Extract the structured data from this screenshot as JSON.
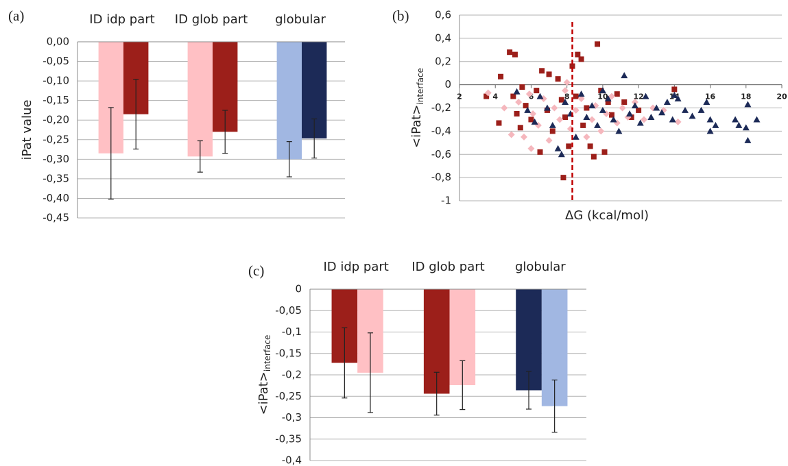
{
  "chart_data": [
    {
      "type": "bar",
      "panel": "(a)",
      "ylabel": "iPat value",
      "categories": [
        "ID idp part",
        "ID glob part",
        "globular"
      ],
      "series": [
        {
          "colors": [
            "#ffc0c4",
            "#ffc0c4",
            "#a1b7e2"
          ],
          "values": [
            -0.285,
            -0.293,
            -0.3
          ],
          "errors": [
            0.117,
            0.04,
            0.045
          ]
        },
        {
          "colors": [
            "#9c1f1a",
            "#9c1f1a",
            "#1c2a57"
          ],
          "values": [
            -0.185,
            -0.23,
            -0.247
          ],
          "errors": [
            0.089,
            0.055,
            0.05
          ]
        }
      ],
      "ylim": [
        -0.45,
        0
      ],
      "yticks": [
        {
          "value": 0,
          "label": "0,00"
        },
        {
          "value": -0.05,
          "label": "-0,05"
        },
        {
          "value": -0.1,
          "label": "-0,10"
        },
        {
          "value": -0.15,
          "label": "-0,15"
        },
        {
          "value": -0.2,
          "label": "-0,20"
        },
        {
          "value": -0.25,
          "label": "-0,25"
        },
        {
          "value": -0.3,
          "label": "-0,30"
        },
        {
          "value": -0.35,
          "label": "-0,35"
        },
        {
          "value": -0.4,
          "label": "-0,40"
        },
        {
          "value": -0.45,
          "label": "-0,45"
        }
      ],
      "grid": true
    },
    {
      "type": "scatter",
      "panel": "(b)",
      "ylabel": "<iPat>",
      "ylabel_sub": "interface",
      "xlabel": "ΔG (kcal/mol)",
      "series": [
        {
          "color": "#9c1f1a",
          "marker": "square",
          "x": [
            4.2,
            4.8,
            5.1,
            4.3,
            5.0,
            5.2,
            5.4,
            5.7,
            6.0,
            6.3,
            6.6,
            6.9,
            7.2,
            7.5,
            7.7,
            7.9,
            8.1,
            8.3,
            8.5,
            8.6,
            8.8,
            8.9,
            9.1,
            9.3,
            9.5,
            9.7,
            9.9,
            10.1,
            10.3,
            10.5,
            11.2,
            11.6,
            12.0,
            14.0,
            7.8,
            6.5,
            3.5,
            5.5,
            7.0,
            10.8
          ],
          "values": [
            -0.33,
            0.28,
            0.26,
            0.07,
            -0.1,
            -0.25,
            -0.37,
            -0.18,
            -0.3,
            -0.05,
            0.12,
            -0.22,
            -0.4,
            0.05,
            -0.13,
            -0.28,
            -0.53,
            0.16,
            -0.1,
            0.26,
            0.22,
            -0.35,
            -0.2,
            -0.53,
            -0.62,
            0.35,
            -0.05,
            -0.58,
            -0.15,
            -0.26,
            -0.15,
            -0.28,
            -0.22,
            -0.04,
            -0.8,
            -0.58,
            -0.1,
            -0.02,
            0.09,
            -0.08
          ]
        },
        {
          "color": "#f5b7bd",
          "marker": "diamond",
          "x": [
            3.6,
            4.5,
            4.9,
            5.3,
            5.6,
            5.9,
            6.1,
            6.4,
            6.7,
            7.0,
            7.3,
            7.6,
            7.9,
            8.2,
            8.5,
            8.8,
            9.1,
            9.4,
            9.6,
            9.9,
            10.2,
            10.5,
            10.8,
            11.1,
            11.4,
            11.8,
            12.3,
            13.4,
            14.2,
            6.0,
            8.0,
            12.8
          ],
          "values": [
            -0.07,
            -0.2,
            -0.43,
            -0.15,
            -0.45,
            -0.08,
            -0.25,
            -0.35,
            -0.12,
            -0.48,
            -0.2,
            -0.3,
            -0.05,
            -0.38,
            -0.22,
            -0.12,
            -0.45,
            -0.3,
            -0.18,
            -0.4,
            -0.25,
            -0.1,
            -0.33,
            -0.2,
            -0.28,
            -0.15,
            -0.3,
            -0.22,
            -0.32,
            -0.55,
            0.02,
            -0.2
          ]
        },
        {
          "color": "#1c2a57",
          "marker": "triangle",
          "x": [
            5.2,
            5.8,
            6.2,
            6.5,
            6.9,
            7.2,
            7.5,
            7.7,
            7.9,
            8.2,
            8.5,
            8.8,
            9.1,
            9.4,
            9.7,
            10.0,
            10.3,
            10.6,
            10.9,
            11.2,
            11.5,
            11.8,
            12.1,
            12.4,
            12.7,
            13.0,
            13.3,
            13.6,
            13.9,
            14.2,
            14.6,
            15.0,
            15.5,
            15.8,
            16.0,
            16.3,
            17.4,
            17.6,
            18.0,
            18.1,
            18.1,
            18.6,
            16.0,
            14.0,
            10.0
          ],
          "values": [
            -0.06,
            -0.22,
            -0.32,
            -0.1,
            -0.2,
            -0.35,
            -0.55,
            -0.6,
            -0.15,
            -0.25,
            -0.45,
            -0.08,
            -0.28,
            -0.18,
            -0.35,
            -0.22,
            -0.12,
            -0.3,
            -0.4,
            0.08,
            -0.25,
            -0.18,
            -0.33,
            -0.1,
            -0.28,
            -0.2,
            -0.24,
            -0.15,
            -0.3,
            -0.12,
            -0.22,
            -0.27,
            -0.22,
            -0.15,
            -0.3,
            -0.35,
            -0.3,
            -0.35,
            -0.37,
            -0.48,
            -0.17,
            -0.3,
            -0.4,
            -0.09,
            -0.05
          ]
        }
      ],
      "vline": {
        "x": 8.3,
        "color": "#c00000"
      },
      "xlim": [
        2,
        20
      ],
      "xticks": [
        2,
        4,
        6,
        8,
        10,
        12,
        14,
        16,
        18,
        20
      ],
      "ylim": [
        -1,
        0.6
      ],
      "yticks": [
        {
          "value": 0.6,
          "label": "0,6"
        },
        {
          "value": 0.4,
          "label": "0,4"
        },
        {
          "value": 0.2,
          "label": "0,2"
        },
        0,
        {
          "value": -0.2,
          "label": "-0,2"
        },
        {
          "value": -0.4,
          "label": "-0,4"
        },
        {
          "value": -0.6,
          "label": "-0,6"
        },
        {
          "value": -0.8,
          "label": "-0,8"
        },
        -1
      ],
      "grid": true
    },
    {
      "type": "bar",
      "panel": "(c)",
      "ylabel": "<iPat>",
      "ylabel_sub": "interface",
      "categories": [
        "ID idp part",
        "ID glob part",
        "globular"
      ],
      "series": [
        {
          "colors": [
            "#9c1f1a",
            "#9c1f1a",
            "#1c2a57"
          ],
          "values": [
            -0.172,
            -0.244,
            -0.236
          ],
          "errors": [
            0.082,
            0.05,
            0.044
          ]
        },
        {
          "colors": [
            "#ffc0c4",
            "#ffc0c4",
            "#a1b7e2"
          ],
          "values": [
            -0.195,
            -0.224,
            -0.273
          ],
          "errors": [
            0.093,
            0.057,
            0.061
          ]
        }
      ],
      "ylim": [
        -0.4,
        0
      ],
      "yticks": [
        0,
        {
          "value": -0.05,
          "label": "-0,05"
        },
        {
          "value": -0.1,
          "label": "-0,1"
        },
        {
          "value": -0.15,
          "label": "-0,15"
        },
        {
          "value": -0.2,
          "label": "-0,2"
        },
        {
          "value": -0.25,
          "label": "-0,25"
        },
        {
          "value": -0.3,
          "label": "-0,3"
        },
        {
          "value": -0.35,
          "label": "-0,35"
        },
        {
          "value": -0.4,
          "label": "-0,4"
        }
      ],
      "grid": true
    }
  ]
}
